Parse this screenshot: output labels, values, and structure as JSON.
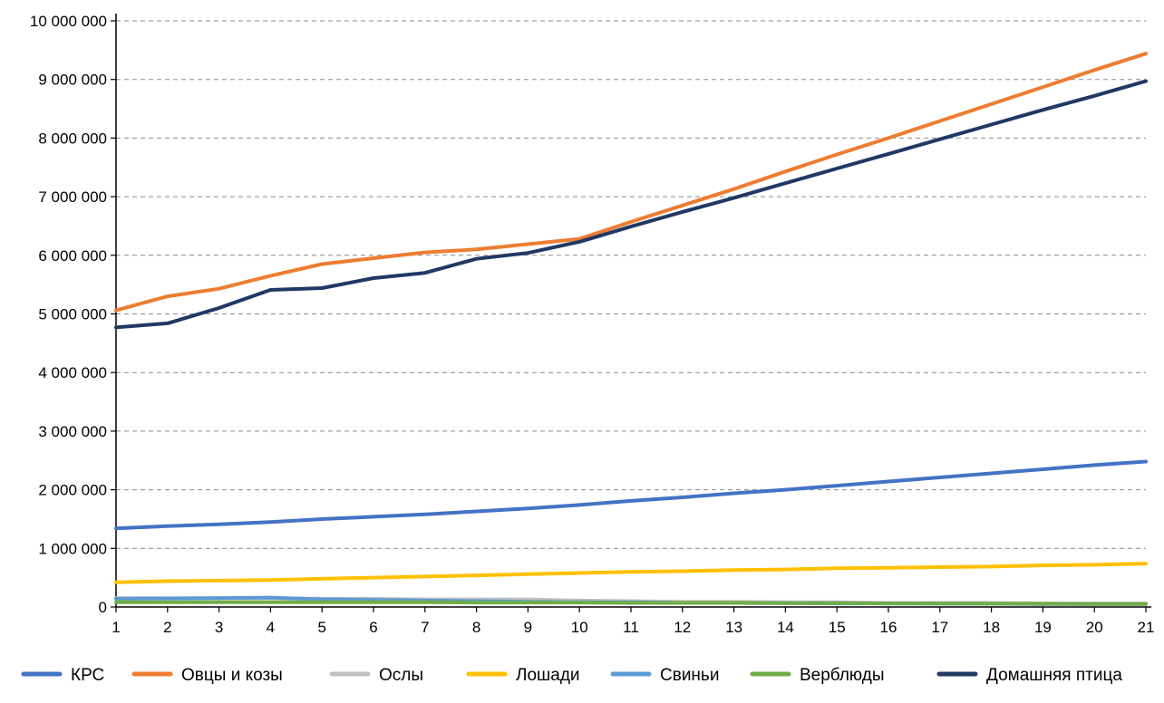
{
  "chart_data": {
    "type": "line",
    "title": "",
    "xlabel": "",
    "ylabel": "",
    "x": [
      1,
      2,
      3,
      4,
      5,
      6,
      7,
      8,
      9,
      10,
      11,
      12,
      13,
      14,
      15,
      16,
      17,
      18,
      19,
      20,
      21
    ],
    "x_tick_labels": [
      "1",
      "2",
      "3",
      "4",
      "5",
      "6",
      "7",
      "8",
      "9",
      "10",
      "11",
      "12",
      "13",
      "14",
      "15",
      "16",
      "17",
      "18",
      "19",
      "20",
      "21"
    ],
    "ylim": [
      0,
      10000000
    ],
    "y_ticks": [
      0,
      1000000,
      2000000,
      3000000,
      4000000,
      5000000,
      6000000,
      7000000,
      8000000,
      9000000,
      10000000
    ],
    "y_tick_labels": [
      "0",
      "1 000 000",
      "2 000 000",
      "3 000 000",
      "4 000 000",
      "5 000 000",
      "6 000 000",
      "7 000 000",
      "8 000 000",
      "9 000 000",
      "10 000 000"
    ],
    "grid": "horizontal dashed",
    "legend_position": "bottom",
    "series": [
      {
        "name": "КРС",
        "color": "#4472C4",
        "values": [
          1340000,
          1380000,
          1410000,
          1450000,
          1500000,
          1540000,
          1580000,
          1630000,
          1680000,
          1740000,
          1810000,
          1870000,
          1940000,
          2000000,
          2070000,
          2140000,
          2210000,
          2280000,
          2350000,
          2420000,
          2480000
        ]
      },
      {
        "name": "Овцы и козы",
        "color": "#ED7D31",
        "values": [
          5060000,
          5300000,
          5430000,
          5650000,
          5850000,
          5950000,
          6050000,
          6100000,
          6190000,
          6280000,
          6570000,
          6850000,
          7130000,
          7430000,
          7720000,
          8000000,
          8290000,
          8580000,
          8870000,
          9160000,
          9440000
        ]
      },
      {
        "name": "Ослы",
        "color": "#C0C0C0",
        "values": [
          150000,
          150000,
          150000,
          150000,
          140000,
          140000,
          130000,
          130000,
          130000,
          110000,
          100000,
          90000,
          90000,
          80000,
          80000,
          70000,
          70000,
          70000,
          60000,
          60000,
          60000
        ]
      },
      {
        "name": "Лошади",
        "color": "#FFC000",
        "values": [
          420000,
          440000,
          450000,
          460000,
          480000,
          500000,
          520000,
          540000,
          560000,
          580000,
          600000,
          610000,
          630000,
          640000,
          660000,
          670000,
          680000,
          690000,
          710000,
          720000,
          740000
        ]
      },
      {
        "name": "Свиньи",
        "color": "#5B9BD5",
        "values": [
          140000,
          145000,
          150000,
          160000,
          130000,
          120000,
          110000,
          100000,
          90000,
          80000,
          80000,
          70000,
          70000,
          65000,
          60000,
          60000,
          55000,
          55000,
          50000,
          50000,
          50000
        ]
      },
      {
        "name": "Верблюды",
        "color": "#70AD47",
        "values": [
          80000,
          80000,
          80000,
          80000,
          80000,
          80000,
          80000,
          75000,
          75000,
          75000,
          70000,
          70000,
          70000,
          65000,
          65000,
          60000,
          60000,
          55000,
          55000,
          50000,
          50000
        ]
      },
      {
        "name": "Домашняя птица",
        "color": "#203864",
        "values": [
          4770000,
          4840000,
          5100000,
          5410000,
          5440000,
          5610000,
          5700000,
          5940000,
          6040000,
          6230000,
          6490000,
          6740000,
          6980000,
          7230000,
          7480000,
          7730000,
          7980000,
          8230000,
          8480000,
          8720000,
          8970000
        ]
      }
    ]
  }
}
